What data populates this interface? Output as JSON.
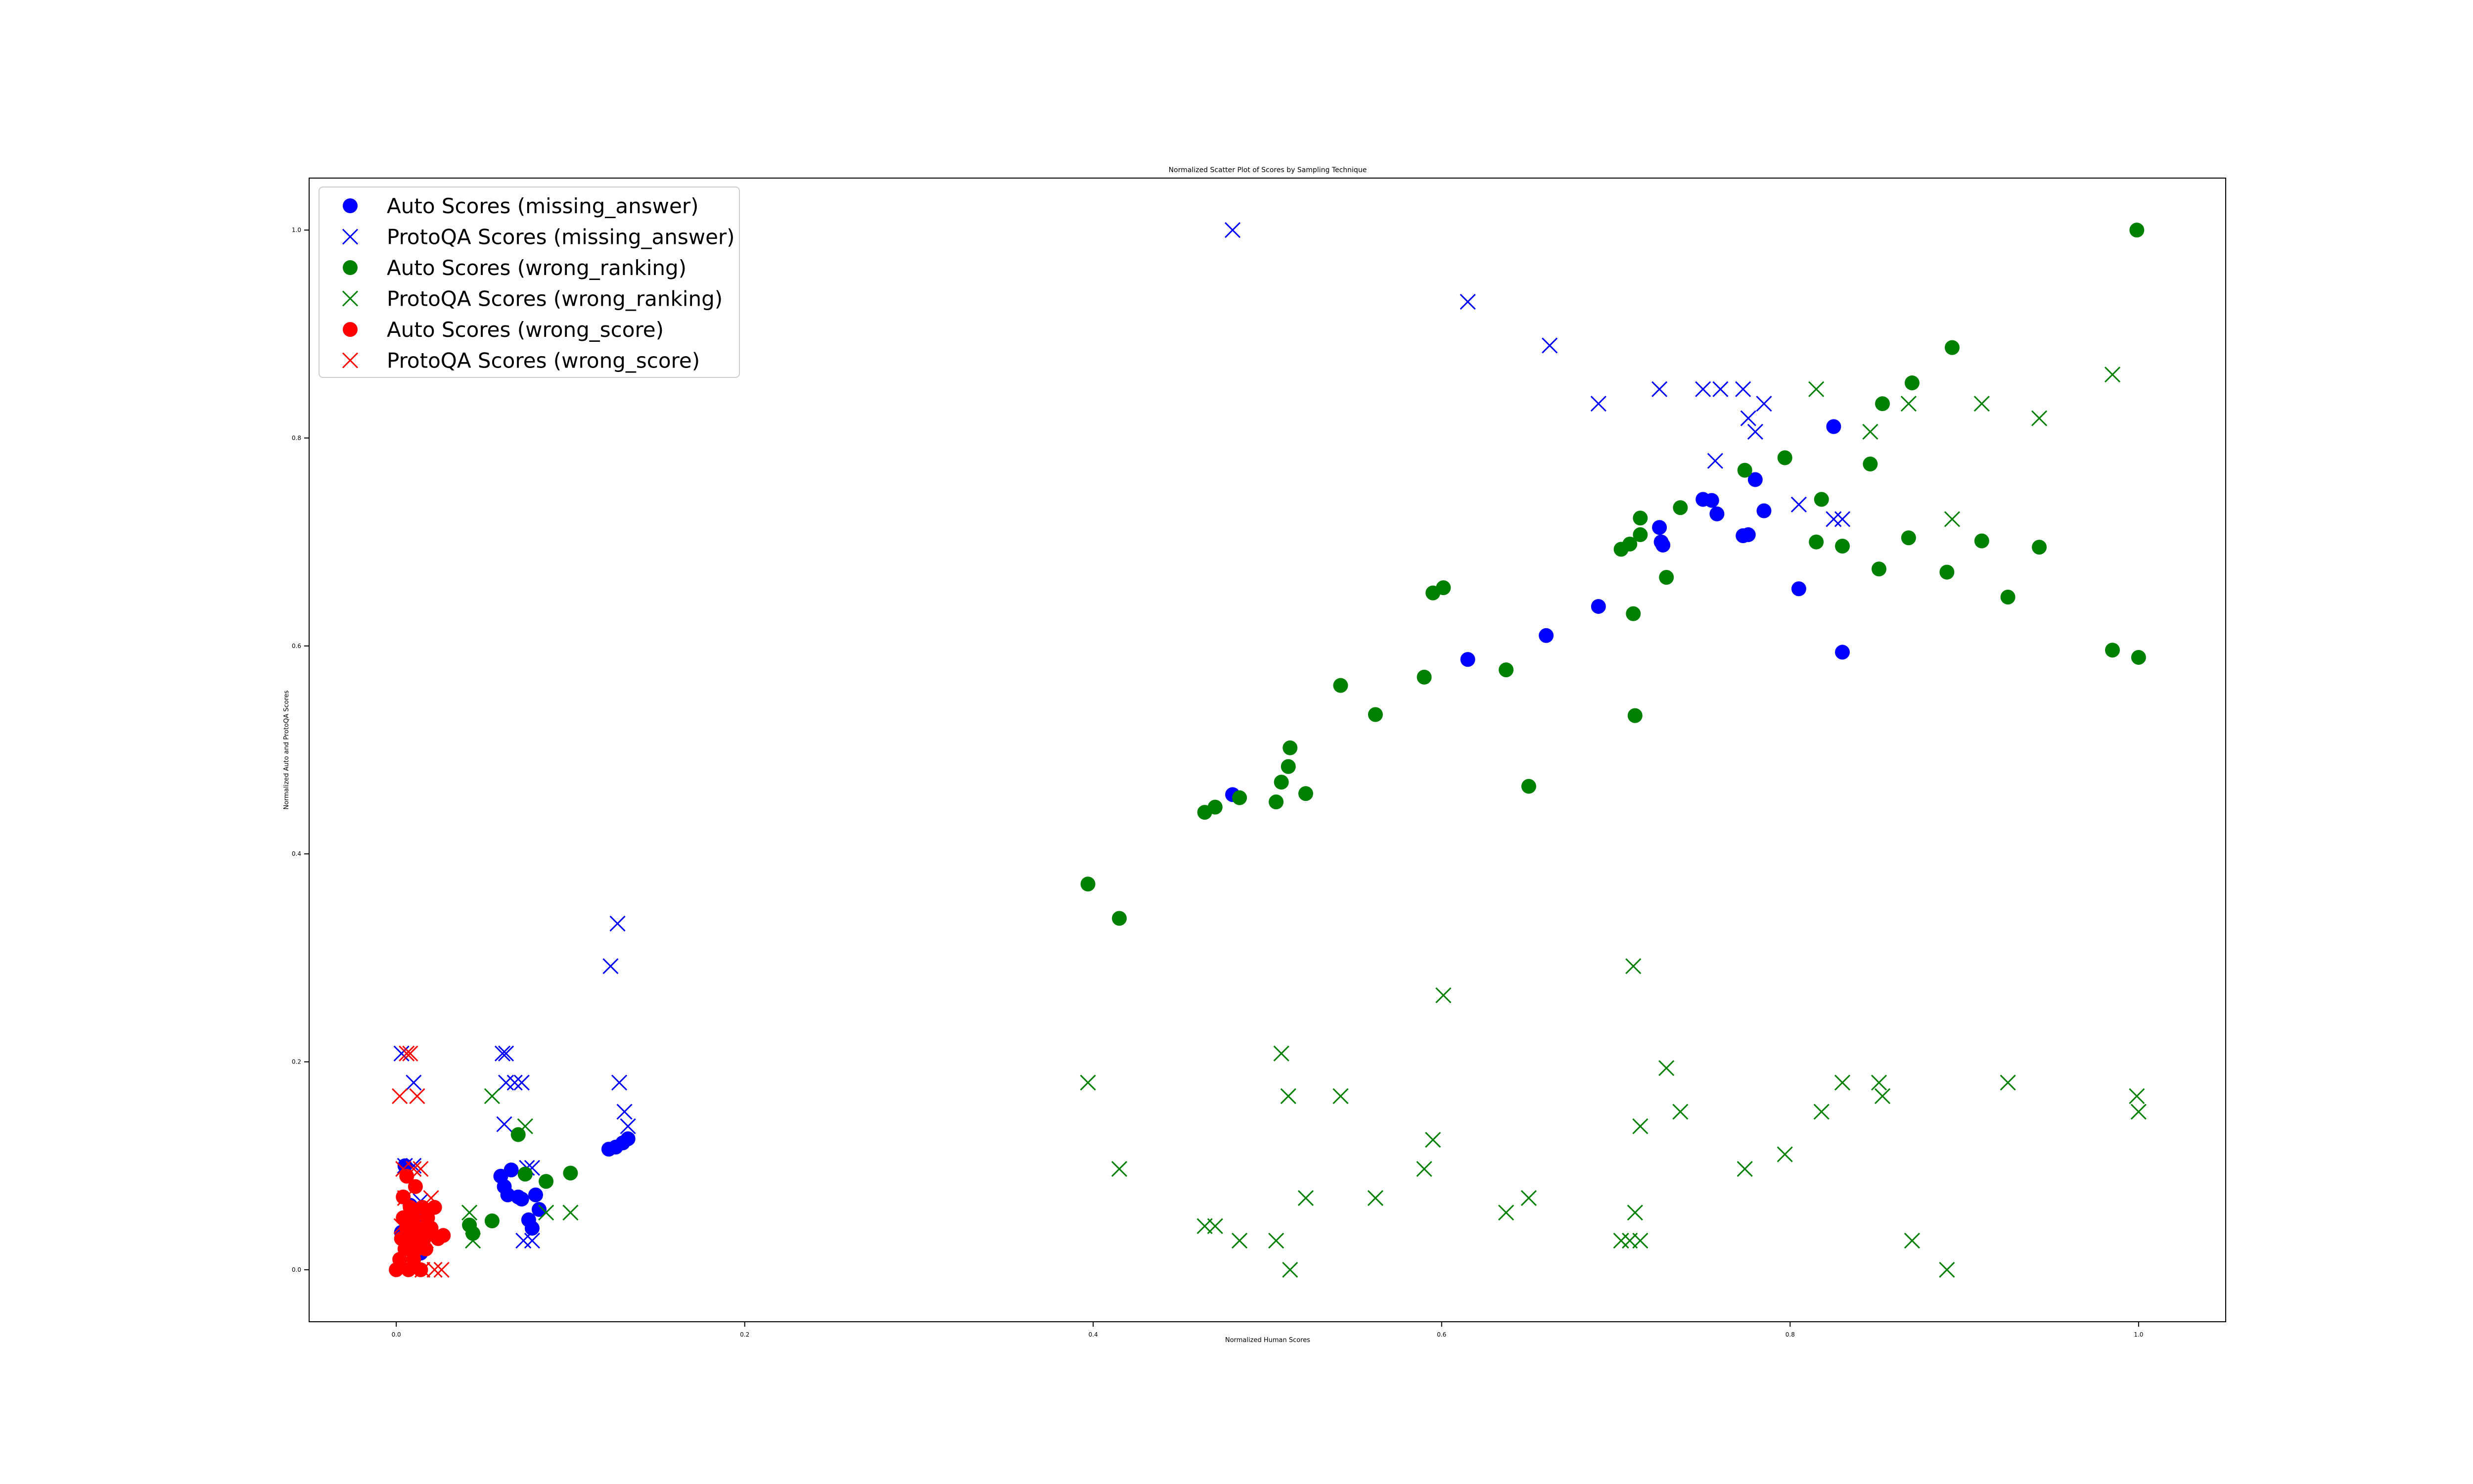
{
  "chart_data": {
    "type": "scatter",
    "title": "Normalized Scatter Plot of Scores by Sampling Technique",
    "xlabel": "Normalized Human Scores",
    "ylabel": "Normalized Auto and ProtoQA Scores",
    "xlim": [
      -0.05,
      1.05
    ],
    "ylim": [
      -0.05,
      1.05
    ],
    "xticks": [
      "0.0",
      "0.2",
      "0.4",
      "0.6",
      "0.8",
      "1.0"
    ],
    "yticks": [
      "0.0",
      "0.2",
      "0.4",
      "0.6",
      "0.8",
      "1.0"
    ],
    "grid": false,
    "legend_position": "upper-left",
    "series": [
      {
        "name": "Auto Scores (missing_answer)",
        "marker": "circle",
        "color": "#0000ff",
        "points": [
          [
            0.003,
            0.036
          ],
          [
            0.005,
            0.1
          ],
          [
            0.006,
            0.028
          ],
          [
            0.008,
            0.062
          ],
          [
            0.01,
            0.04
          ],
          [
            0.012,
            0.02
          ],
          [
            0.014,
            0.016
          ],
          [
            0.016,
            0.05
          ],
          [
            0.06,
            0.09
          ],
          [
            0.062,
            0.08
          ],
          [
            0.064,
            0.072
          ],
          [
            0.066,
            0.096
          ],
          [
            0.07,
            0.07
          ],
          [
            0.072,
            0.068
          ],
          [
            0.074,
            0.092
          ],
          [
            0.076,
            0.048
          ],
          [
            0.078,
            0.04
          ],
          [
            0.08,
            0.072
          ],
          [
            0.082,
            0.058
          ],
          [
            0.122,
            0.116
          ],
          [
            0.126,
            0.118
          ],
          [
            0.13,
            0.122
          ],
          [
            0.133,
            0.126
          ],
          [
            0.48,
            0.457
          ],
          [
            0.615,
            0.587
          ],
          [
            0.66,
            0.61
          ],
          [
            0.69,
            0.638
          ],
          [
            0.725,
            0.714
          ],
          [
            0.726,
            0.7
          ],
          [
            0.727,
            0.697
          ],
          [
            0.75,
            0.741
          ],
          [
            0.755,
            0.74
          ],
          [
            0.758,
            0.727
          ],
          [
            0.773,
            0.706
          ],
          [
            0.776,
            0.707
          ],
          [
            0.78,
            0.76
          ],
          [
            0.785,
            0.73
          ],
          [
            0.805,
            0.655
          ],
          [
            0.825,
            0.811
          ],
          [
            0.83,
            0.594
          ]
        ]
      },
      {
        "name": "ProtoQA Scores (missing_answer)",
        "marker": "x",
        "color": "#0000ff",
        "points": [
          [
            0.003,
            0.208
          ],
          [
            0.01,
            0.18
          ],
          [
            0.01,
            0.1
          ],
          [
            0.014,
            0.066
          ],
          [
            0.005,
            0.1
          ],
          [
            0.061,
            0.208
          ],
          [
            0.063,
            0.208
          ],
          [
            0.062,
            0.14
          ],
          [
            0.063,
            0.18
          ],
          [
            0.068,
            0.18
          ],
          [
            0.072,
            0.18
          ],
          [
            0.075,
            0.098
          ],
          [
            0.078,
            0.098
          ],
          [
            0.073,
            0.028
          ],
          [
            0.078,
            0.028
          ],
          [
            0.123,
            0.292
          ],
          [
            0.127,
            0.333
          ],
          [
            0.128,
            0.18
          ],
          [
            0.131,
            0.152
          ],
          [
            0.133,
            0.138
          ],
          [
            0.48,
            1.0
          ],
          [
            0.615,
            0.931
          ],
          [
            0.662,
            0.889
          ],
          [
            0.69,
            0.833
          ],
          [
            0.725,
            0.847
          ],
          [
            0.75,
            0.847
          ],
          [
            0.757,
            0.778
          ],
          [
            0.76,
            0.847
          ],
          [
            0.773,
            0.847
          ],
          [
            0.776,
            0.819
          ],
          [
            0.78,
            0.806
          ],
          [
            0.785,
            0.833
          ],
          [
            0.805,
            0.736
          ],
          [
            0.825,
            0.722
          ],
          [
            0.83,
            0.722
          ]
        ]
      },
      {
        "name": "Auto Scores (wrong_ranking)",
        "marker": "circle",
        "color": "#008000",
        "points": [
          [
            0.042,
            0.043
          ],
          [
            0.044,
            0.035
          ],
          [
            0.055,
            0.047
          ],
          [
            0.07,
            0.13
          ],
          [
            0.074,
            0.092
          ],
          [
            0.086,
            0.085
          ],
          [
            0.1,
            0.093
          ],
          [
            0.397,
            0.371
          ],
          [
            0.415,
            0.338
          ],
          [
            0.464,
            0.44
          ],
          [
            0.47,
            0.445
          ],
          [
            0.484,
            0.454
          ],
          [
            0.505,
            0.45
          ],
          [
            0.508,
            0.469
          ],
          [
            0.512,
            0.484
          ],
          [
            0.513,
            0.502
          ],
          [
            0.522,
            0.458
          ],
          [
            0.542,
            0.562
          ],
          [
            0.562,
            0.534
          ],
          [
            0.59,
            0.57
          ],
          [
            0.595,
            0.651
          ],
          [
            0.601,
            0.656
          ],
          [
            0.637,
            0.577
          ],
          [
            0.65,
            0.465
          ],
          [
            0.703,
            0.693
          ],
          [
            0.708,
            0.698
          ],
          [
            0.71,
            0.631
          ],
          [
            0.711,
            0.533
          ],
          [
            0.714,
            0.723
          ],
          [
            0.714,
            0.707
          ],
          [
            0.729,
            0.666
          ],
          [
            0.737,
            0.733
          ],
          [
            0.774,
            0.769
          ],
          [
            0.797,
            0.781
          ],
          [
            0.815,
            0.7
          ],
          [
            0.818,
            0.741
          ],
          [
            0.83,
            0.696
          ],
          [
            0.846,
            0.775
          ],
          [
            0.851,
            0.674
          ],
          [
            0.853,
            0.833
          ],
          [
            0.868,
            0.704
          ],
          [
            0.87,
            0.853
          ],
          [
            0.89,
            0.671
          ],
          [
            0.893,
            0.887
          ],
          [
            0.91,
            0.701
          ],
          [
            0.925,
            0.647
          ],
          [
            0.943,
            0.695
          ],
          [
            0.985,
            0.596
          ],
          [
            0.999,
            1.0
          ],
          [
            1.0,
            0.589
          ]
        ]
      },
      {
        "name": "ProtoQA Scores (wrong_ranking)",
        "marker": "x",
        "color": "#008000",
        "points": [
          [
            0.042,
            0.055
          ],
          [
            0.044,
            0.028
          ],
          [
            0.055,
            0.167
          ],
          [
            0.074,
            0.138
          ],
          [
            0.086,
            0.055
          ],
          [
            0.1,
            0.055
          ],
          [
            0.397,
            0.18
          ],
          [
            0.415,
            0.097
          ],
          [
            0.464,
            0.042
          ],
          [
            0.47,
            0.042
          ],
          [
            0.484,
            0.028
          ],
          [
            0.505,
            0.028
          ],
          [
            0.508,
            0.208
          ],
          [
            0.512,
            0.167
          ],
          [
            0.513,
            0.0
          ],
          [
            0.522,
            0.069
          ],
          [
            0.542,
            0.167
          ],
          [
            0.562,
            0.069
          ],
          [
            0.59,
            0.097
          ],
          [
            0.595,
            0.125
          ],
          [
            0.601,
            0.264
          ],
          [
            0.637,
            0.055
          ],
          [
            0.65,
            0.069
          ],
          [
            0.703,
            0.028
          ],
          [
            0.708,
            0.028
          ],
          [
            0.71,
            0.292
          ],
          [
            0.711,
            0.055
          ],
          [
            0.714,
            0.138
          ],
          [
            0.714,
            0.028
          ],
          [
            0.729,
            0.194
          ],
          [
            0.737,
            0.152
          ],
          [
            0.774,
            0.097
          ],
          [
            0.797,
            0.111
          ],
          [
            0.815,
            0.847
          ],
          [
            0.818,
            0.152
          ],
          [
            0.83,
            0.18
          ],
          [
            0.846,
            0.806
          ],
          [
            0.851,
            0.18
          ],
          [
            0.853,
            0.167
          ],
          [
            0.868,
            0.833
          ],
          [
            0.87,
            0.028
          ],
          [
            0.89,
            0.0
          ],
          [
            0.893,
            0.722
          ],
          [
            0.91,
            0.833
          ],
          [
            0.925,
            0.18
          ],
          [
            0.943,
            0.819
          ],
          [
            0.985,
            0.861
          ],
          [
            0.999,
            0.167
          ],
          [
            1.0,
            0.152
          ]
        ]
      },
      {
        "name": "Auto Scores (wrong_score)",
        "marker": "circle",
        "color": "#ff0000",
        "points": [
          [
            0.0,
            0.0
          ],
          [
            0.002,
            0.01
          ],
          [
            0.003,
            0.03
          ],
          [
            0.004,
            0.05
          ],
          [
            0.004,
            0.07
          ],
          [
            0.005,
            0.02
          ],
          [
            0.006,
            0.04
          ],
          [
            0.006,
            0.09
          ],
          [
            0.007,
            0.0
          ],
          [
            0.008,
            0.06
          ],
          [
            0.009,
            0.03
          ],
          [
            0.01,
            0.01
          ],
          [
            0.01,
            0.05
          ],
          [
            0.011,
            0.08
          ],
          [
            0.012,
            0.02
          ],
          [
            0.013,
            0.04
          ],
          [
            0.014,
            0.0
          ],
          [
            0.015,
            0.06
          ],
          [
            0.016,
            0.03
          ],
          [
            0.017,
            0.02
          ],
          [
            0.018,
            0.05
          ],
          [
            0.02,
            0.04
          ],
          [
            0.022,
            0.06
          ],
          [
            0.024,
            0.03
          ],
          [
            0.027,
            0.033
          ]
        ]
      },
      {
        "name": "ProtoQA Scores (wrong_score)",
        "marker": "x",
        "color": "#ff0000",
        "points": [
          [
            0.002,
            0.167
          ],
          [
            0.004,
            0.097
          ],
          [
            0.006,
            0.208
          ],
          [
            0.008,
            0.208
          ],
          [
            0.01,
            0.097
          ],
          [
            0.012,
            0.167
          ],
          [
            0.014,
            0.097
          ],
          [
            0.005,
            0.069
          ],
          [
            0.008,
            0.055
          ],
          [
            0.011,
            0.028
          ],
          [
            0.015,
            0.0
          ],
          [
            0.02,
            0.069
          ],
          [
            0.022,
            0.0
          ],
          [
            0.026,
            0.0
          ],
          [
            0.003,
            0.042
          ],
          [
            0.009,
            0.014
          ],
          [
            0.017,
            0.028
          ]
        ]
      }
    ]
  }
}
